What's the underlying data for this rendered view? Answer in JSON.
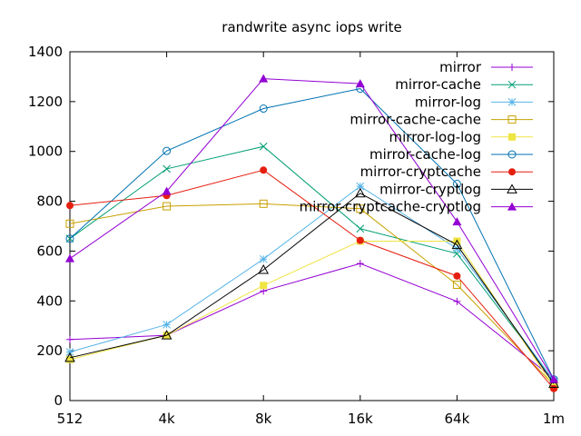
{
  "chart_data": {
    "type": "line",
    "title": "randwrite async iops write",
    "xlabel": "",
    "ylabel": "",
    "categories": [
      "512",
      "4k",
      "8k",
      "16k",
      "64k",
      "1m"
    ],
    "ylim": [
      0,
      1400
    ],
    "yticks": [
      0,
      200,
      400,
      600,
      800,
      1000,
      1200,
      1400
    ],
    "grid": false,
    "legend_position": "top-right",
    "series": [
      {
        "name": "mirror",
        "color": "#9400d3",
        "marker": "plus",
        "values": [
          245,
          262,
          440,
          550,
          398,
          88
        ]
      },
      {
        "name": "mirror-cache",
        "color": "#009e73",
        "marker": "cross",
        "values": [
          650,
          930,
          1020,
          690,
          590,
          80
        ]
      },
      {
        "name": "mirror-log",
        "color": "#56b4e9",
        "marker": "star",
        "values": [
          195,
          305,
          568,
          860,
          610,
          80
        ]
      },
      {
        "name": "mirror-cache-cache",
        "color": "#c8a000",
        "marker": "open-square",
        "values": [
          710,
          780,
          790,
          770,
          465,
          62
        ]
      },
      {
        "name": "mirror-log-log",
        "color": "#f0e442",
        "marker": "filled-square",
        "values": [
          165,
          262,
          462,
          640,
          640,
          55
        ]
      },
      {
        "name": "mirror-cache-log",
        "color": "#0072b2",
        "marker": "open-circle",
        "values": [
          650,
          1002,
          1172,
          1252,
          870,
          85
        ]
      },
      {
        "name": "mirror-cryptcache",
        "color": "#e51e10",
        "marker": "filled-circle",
        "values": [
          783,
          823,
          925,
          643,
          500,
          48
        ]
      },
      {
        "name": "mirror-cryptlog",
        "color": "#000000",
        "marker": "open-triangle",
        "values": [
          172,
          262,
          525,
          832,
          625,
          68
        ]
      },
      {
        "name": "mirror-cryptcache-cryptlog",
        "color": "#9400d3",
        "marker": "filled-triangle",
        "values": [
          570,
          840,
          1292,
          1272,
          718,
          85
        ]
      }
    ]
  }
}
